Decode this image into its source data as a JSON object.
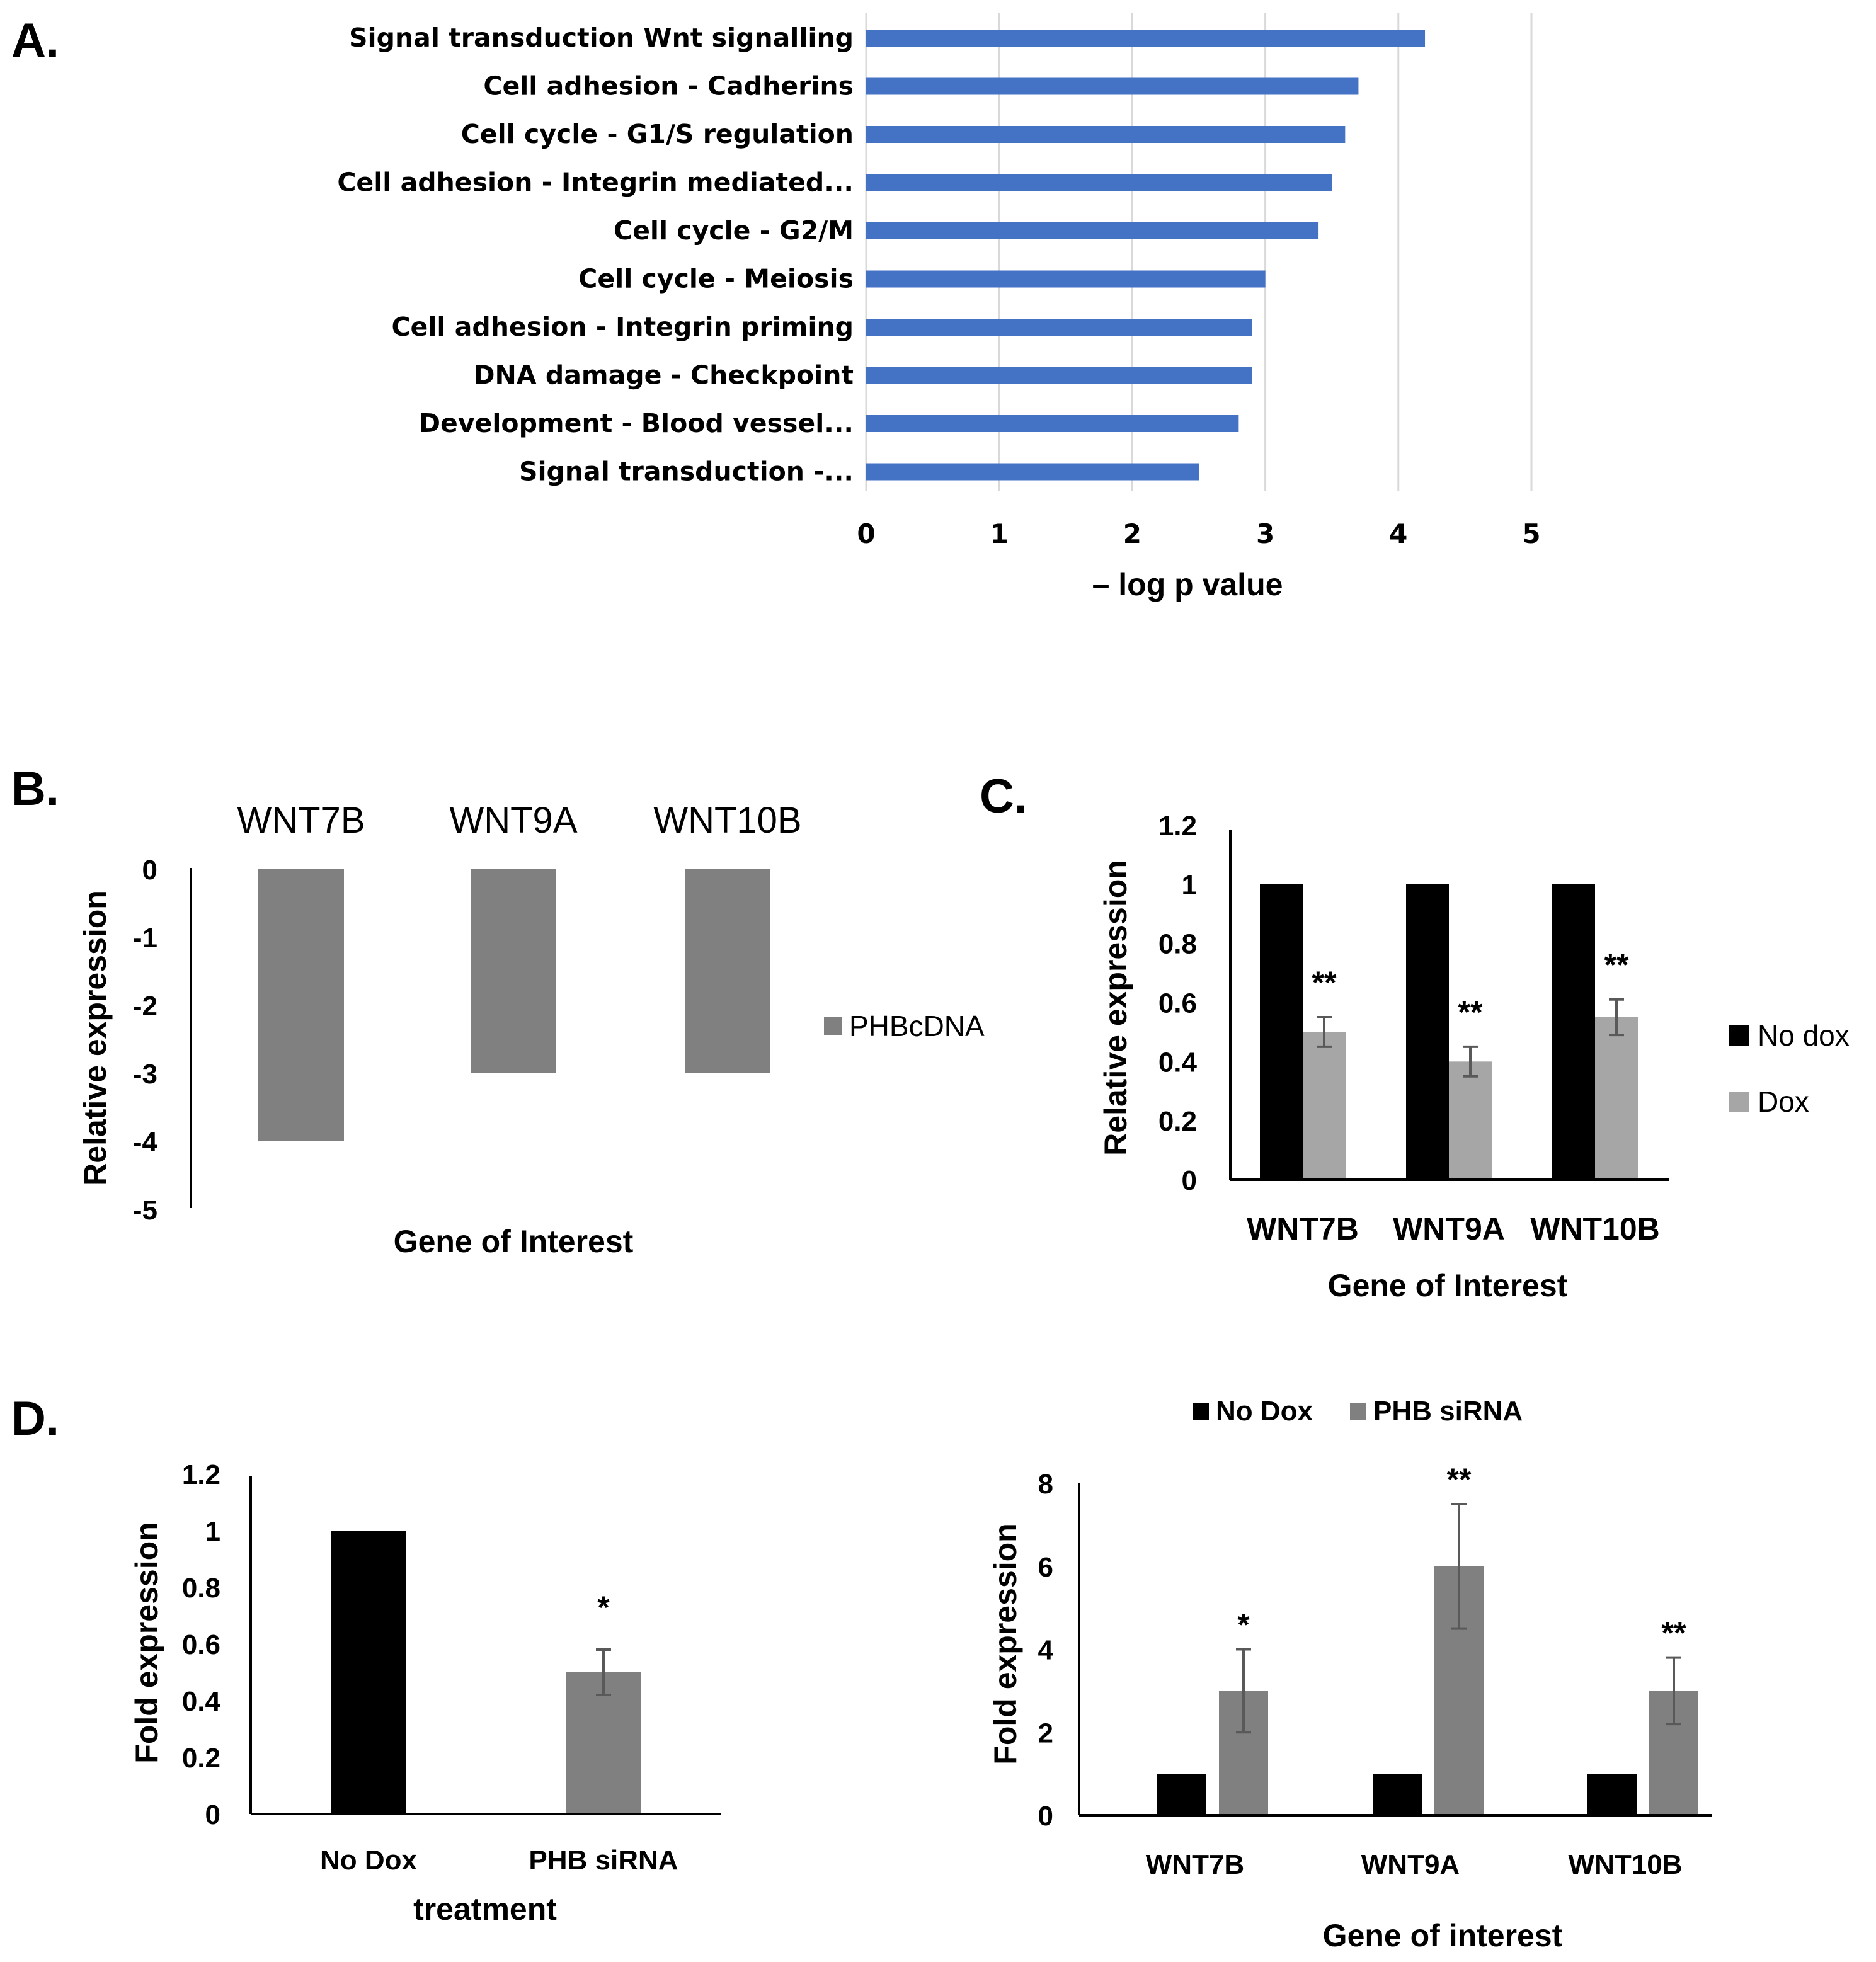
{
  "colors": {
    "bar_blue": "#4472C4",
    "grid": "#D9D9D9",
    "axis": "#000000",
    "gray_dark": "#808080",
    "gray_light": "#A6A6A6",
    "black": "#000000"
  },
  "chart_data": [
    {
      "panel": "A.",
      "type": "bar",
      "orientation": "horizontal",
      "categories": [
        "Signal transduction Wnt signalling",
        "Cell adhesion - Cadherins",
        "Cell cycle - G1/S regulation",
        "Cell adhesion - Integrin mediated...",
        "Cell cycle - G2/M",
        "Cell cycle - Meiosis",
        "Cell adhesion - Integrin priming",
        "DNA damage - Checkpoint",
        "Development - Blood vessel...",
        "Signal transduction -..."
      ],
      "values": [
        4.2,
        3.7,
        3.6,
        3.5,
        3.4,
        3.0,
        2.9,
        2.9,
        2.8,
        2.5
      ],
      "xlim": [
        0,
        5
      ],
      "ticks": [
        "0",
        "1",
        "2",
        "3",
        "4",
        "5"
      ],
      "xlabel": "– log p value",
      "grid": true
    },
    {
      "panel": "B.",
      "type": "bar",
      "categories": [
        "WNT7B",
        "WNT9A",
        "WNT10B"
      ],
      "values": [
        -4,
        -3,
        -3
      ],
      "ylim": [
        -5,
        0
      ],
      "ticks": [
        "0",
        "-1",
        "-2",
        "-3",
        "-4",
        "-5"
      ],
      "ylabel": "Relative expression",
      "xlabel": "Gene of Interest",
      "legend": [
        "PHBcDNA"
      ]
    },
    {
      "panel": "C.",
      "type": "bar",
      "categories": [
        "WNT7B",
        "WNT9A",
        "WNT10B"
      ],
      "series": [
        {
          "name": "No dox",
          "values": [
            1,
            1,
            1
          ],
          "errors": [
            0,
            0,
            0
          ]
        },
        {
          "name": "Dox",
          "values": [
            0.5,
            0.4,
            0.55
          ],
          "errors": [
            0.05,
            0.05,
            0.06
          ]
        }
      ],
      "significance": [
        "**",
        "**",
        "**"
      ],
      "ylim": [
        0,
        1.2
      ],
      "ticks": [
        "0",
        "0.2",
        "0.4",
        "0.6",
        "0.8",
        "1",
        "1.2"
      ],
      "ylabel": "Relative expression",
      "xlabel": "Gene of Interest"
    },
    {
      "panel": "D.",
      "type": "bar",
      "categories": [
        "No Dox",
        "PHB siRNA"
      ],
      "values": [
        1,
        0.5
      ],
      "errors": [
        0,
        0.08
      ],
      "significance": [
        "",
        "*"
      ],
      "ylim": [
        0,
        1.2
      ],
      "ticks": [
        "0",
        "0.2",
        "0.4",
        "0.6",
        "0.8",
        "1",
        "1.2"
      ],
      "ylabel": "Fold expression",
      "xlabel": "treatment"
    },
    {
      "panel": "",
      "type": "bar",
      "categories": [
        "WNT7B",
        "WNT9A",
        "WNT10B"
      ],
      "series": [
        {
          "name": "No Dox",
          "values": [
            1,
            1,
            1
          ],
          "errors": [
            0,
            0,
            0
          ]
        },
        {
          "name": "PHB siRNA",
          "values": [
            3,
            6,
            3
          ],
          "errors": [
            1.0,
            1.5,
            0.8
          ]
        }
      ],
      "significance": [
        "*",
        "**",
        "**"
      ],
      "ylim": [
        0,
        8
      ],
      "ticks": [
        "0",
        "2",
        "4",
        "6",
        "8"
      ],
      "ylabel": "Fold expression",
      "xlabel": "Gene of interest",
      "legend_position": "top"
    }
  ]
}
